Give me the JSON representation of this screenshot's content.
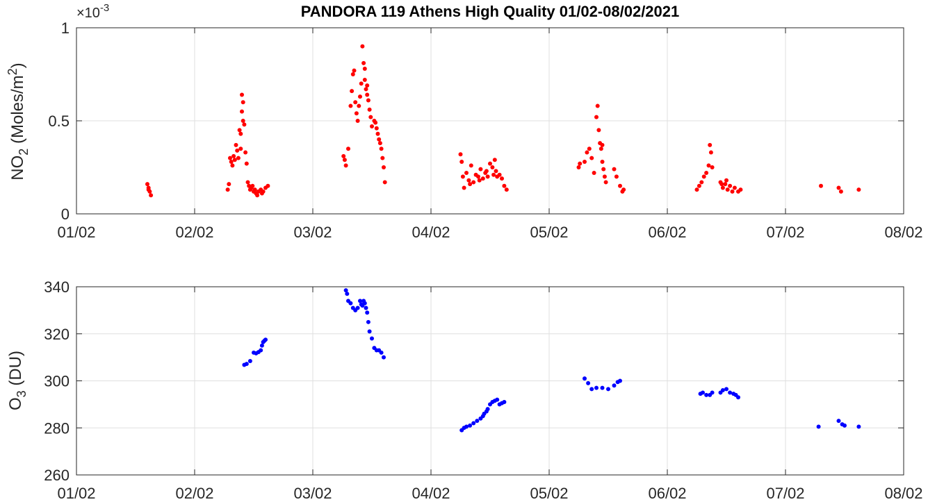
{
  "chart_data": [
    {
      "type": "scatter",
      "title": "PANDORA 119 Athens High Quality 01/02-08/02/2021",
      "ylabel_main": "NO",
      "ylabel_sub": "2",
      "ylabel_rest": " (Moles/m",
      "ylabel_sup": "2",
      "ylabel_end": ")",
      "exponent_prefix": "×10",
      "exponent": "-3",
      "xlim": [
        1,
        8
      ],
      "ylim": [
        0,
        1
      ],
      "x_ticks": [
        1,
        2,
        3,
        4,
        5,
        6,
        7,
        8
      ],
      "x_tick_labels": [
        "01/02",
        "02/02",
        "03/02",
        "04/02",
        "05/02",
        "06/02",
        "07/02",
        "08/02"
      ],
      "y_ticks": [
        0,
        0.5,
        1
      ],
      "y_tick_labels": [
        "0",
        "0.5",
        "1"
      ],
      "grid": true,
      "color": "#ff0000",
      "points": [
        [
          1.6,
          0.16
        ],
        [
          1.61,
          0.14
        ],
        [
          1.62,
          0.12
        ],
        [
          1.63,
          0.1
        ],
        [
          1.61,
          0.13
        ],
        [
          2.28,
          0.13
        ],
        [
          2.29,
          0.16
        ],
        [
          2.3,
          0.3
        ],
        [
          2.31,
          0.28
        ],
        [
          2.32,
          0.26
        ],
        [
          2.33,
          0.31
        ],
        [
          2.34,
          0.29
        ],
        [
          2.35,
          0.37
        ],
        [
          2.36,
          0.34
        ],
        [
          2.37,
          0.3
        ],
        [
          2.38,
          0.45
        ],
        [
          2.39,
          0.43
        ],
        [
          2.4,
          0.55
        ],
        [
          2.41,
          0.6
        ],
        [
          2.42,
          0.48
        ],
        [
          2.43,
          0.33
        ],
        [
          2.44,
          0.27
        ],
        [
          2.45,
          0.17
        ],
        [
          2.46,
          0.15
        ],
        [
          2.47,
          0.13
        ],
        [
          2.48,
          0.14
        ],
        [
          2.5,
          0.12
        ],
        [
          2.52,
          0.11
        ],
        [
          2.54,
          0.12
        ],
        [
          2.56,
          0.13
        ],
        [
          2.58,
          0.12
        ],
        [
          2.6,
          0.14
        ],
        [
          2.62,
          0.15
        ],
        [
          2.4,
          0.64
        ],
        [
          2.39,
          0.35
        ],
        [
          2.41,
          0.5
        ],
        [
          2.53,
          0.1
        ],
        [
          2.57,
          0.11
        ],
        [
          2.49,
          0.15
        ],
        [
          2.51,
          0.13
        ],
        [
          3.26,
          0.31
        ],
        [
          3.27,
          0.29
        ],
        [
          3.28,
          0.26
        ],
        [
          3.3,
          0.35
        ],
        [
          3.32,
          0.58
        ],
        [
          3.33,
          0.66
        ],
        [
          3.34,
          0.75
        ],
        [
          3.35,
          0.77
        ],
        [
          3.36,
          0.6
        ],
        [
          3.37,
          0.54
        ],
        [
          3.38,
          0.5
        ],
        [
          3.39,
          0.58
        ],
        [
          3.4,
          0.63
        ],
        [
          3.41,
          0.7
        ],
        [
          3.42,
          0.9
        ],
        [
          3.43,
          0.81
        ],
        [
          3.44,
          0.72
        ],
        [
          3.45,
          0.67
        ],
        [
          3.46,
          0.64
        ],
        [
          3.47,
          0.61
        ],
        [
          3.48,
          0.56
        ],
        [
          3.49,
          0.52
        ],
        [
          3.5,
          0.47
        ],
        [
          3.52,
          0.5
        ],
        [
          3.54,
          0.46
        ],
        [
          3.55,
          0.43
        ],
        [
          3.56,
          0.4
        ],
        [
          3.57,
          0.38
        ],
        [
          3.58,
          0.35
        ],
        [
          3.59,
          0.3
        ],
        [
          3.6,
          0.25
        ],
        [
          3.61,
          0.17
        ],
        [
          3.44,
          0.78
        ],
        [
          3.46,
          0.69
        ],
        [
          3.53,
          0.49
        ],
        [
          4.25,
          0.32
        ],
        [
          4.26,
          0.28
        ],
        [
          4.27,
          0.2
        ],
        [
          4.28,
          0.14
        ],
        [
          4.3,
          0.22
        ],
        [
          4.32,
          0.18
        ],
        [
          4.34,
          0.26
        ],
        [
          4.36,
          0.17
        ],
        [
          4.38,
          0.21
        ],
        [
          4.4,
          0.2
        ],
        [
          4.42,
          0.24
        ],
        [
          4.44,
          0.19
        ],
        [
          4.46,
          0.22
        ],
        [
          4.48,
          0.2
        ],
        [
          4.5,
          0.27
        ],
        [
          4.52,
          0.25
        ],
        [
          4.54,
          0.29
        ],
        [
          4.55,
          0.23
        ],
        [
          4.56,
          0.2
        ],
        [
          4.58,
          0.21
        ],
        [
          4.6,
          0.19
        ],
        [
          4.62,
          0.15
        ],
        [
          4.64,
          0.13
        ],
        [
          4.33,
          0.16
        ],
        [
          4.41,
          0.18
        ],
        [
          4.47,
          0.23
        ],
        [
          4.53,
          0.21
        ],
        [
          5.25,
          0.25
        ],
        [
          5.26,
          0.27
        ],
        [
          5.3,
          0.28
        ],
        [
          5.32,
          0.33
        ],
        [
          5.34,
          0.35
        ],
        [
          5.36,
          0.3
        ],
        [
          5.38,
          0.22
        ],
        [
          5.4,
          0.52
        ],
        [
          5.41,
          0.58
        ],
        [
          5.42,
          0.45
        ],
        [
          5.43,
          0.38
        ],
        [
          5.44,
          0.35
        ],
        [
          5.45,
          0.28
        ],
        [
          5.46,
          0.24
        ],
        [
          5.47,
          0.2
        ],
        [
          5.48,
          0.17
        ],
        [
          5.55,
          0.24
        ],
        [
          5.57,
          0.2
        ],
        [
          5.6,
          0.15
        ],
        [
          5.62,
          0.12
        ],
        [
          5.63,
          0.13
        ],
        [
          5.45,
          0.37
        ],
        [
          6.25,
          0.13
        ],
        [
          6.27,
          0.15
        ],
        [
          6.29,
          0.17
        ],
        [
          6.31,
          0.2
        ],
        [
          6.33,
          0.22
        ],
        [
          6.35,
          0.26
        ],
        [
          6.36,
          0.37
        ],
        [
          6.37,
          0.33
        ],
        [
          6.38,
          0.25
        ],
        [
          6.45,
          0.17
        ],
        [
          6.47,
          0.14
        ],
        [
          6.49,
          0.16
        ],
        [
          6.51,
          0.13
        ],
        [
          6.53,
          0.15
        ],
        [
          6.55,
          0.12
        ],
        [
          6.57,
          0.14
        ],
        [
          6.6,
          0.12
        ],
        [
          6.62,
          0.13
        ],
        [
          6.5,
          0.18
        ],
        [
          6.46,
          0.16
        ],
        [
          7.3,
          0.15
        ],
        [
          7.45,
          0.14
        ],
        [
          7.47,
          0.12
        ],
        [
          7.62,
          0.13
        ]
      ]
    },
    {
      "type": "scatter",
      "title": "",
      "ylabel_main": "O",
      "ylabel_sub": "3",
      "ylabel_rest": " (DU)",
      "xlim": [
        1,
        8
      ],
      "ylim": [
        260,
        340
      ],
      "x_ticks": [
        1,
        2,
        3,
        4,
        5,
        6,
        7,
        8
      ],
      "x_tick_labels": [
        "01/02",
        "02/02",
        "03/02",
        "04/02",
        "05/02",
        "06/02",
        "07/02",
        "08/02"
      ],
      "y_ticks": [
        260,
        280,
        300,
        320,
        340
      ],
      "y_tick_labels": [
        "260",
        "280",
        "300",
        "320",
        "340"
      ],
      "grid": true,
      "color": "#0000ff",
      "points": [
        [
          2.42,
          306.8
        ],
        [
          2.44,
          307.2
        ],
        [
          2.47,
          308.4
        ],
        [
          2.5,
          312
        ],
        [
          2.52,
          311.7
        ],
        [
          2.54,
          312.2
        ],
        [
          2.56,
          313
        ],
        [
          2.57,
          315
        ],
        [
          2.58,
          316.5
        ],
        [
          2.6,
          317.5
        ],
        [
          2.59,
          317
        ],
        [
          3.28,
          338.5
        ],
        [
          3.29,
          337
        ],
        [
          3.3,
          334
        ],
        [
          3.32,
          333
        ],
        [
          3.34,
          331
        ],
        [
          3.36,
          330
        ],
        [
          3.38,
          331
        ],
        [
          3.4,
          334
        ],
        [
          3.42,
          332
        ],
        [
          3.44,
          333
        ],
        [
          3.45,
          331
        ],
        [
          3.46,
          329
        ],
        [
          3.47,
          325
        ],
        [
          3.48,
          321
        ],
        [
          3.5,
          318
        ],
        [
          3.52,
          314
        ],
        [
          3.54,
          313
        ],
        [
          3.56,
          313
        ],
        [
          3.58,
          312
        ],
        [
          3.6,
          310
        ],
        [
          3.43,
          334
        ],
        [
          3.41,
          332.5
        ],
        [
          4.26,
          279
        ],
        [
          4.28,
          280
        ],
        [
          4.3,
          280.5
        ],
        [
          4.33,
          281
        ],
        [
          4.36,
          282
        ],
        [
          4.39,
          283
        ],
        [
          4.42,
          284
        ],
        [
          4.45,
          286
        ],
        [
          4.48,
          288
        ],
        [
          4.5,
          290
        ],
        [
          4.52,
          291
        ],
        [
          4.54,
          291.5
        ],
        [
          4.56,
          292
        ],
        [
          4.58,
          290
        ],
        [
          4.6,
          290.5
        ],
        [
          4.62,
          291
        ],
        [
          4.44,
          285
        ],
        [
          4.47,
          287
        ],
        [
          5.3,
          301
        ],
        [
          5.33,
          299
        ],
        [
          5.36,
          296.5
        ],
        [
          5.4,
          297
        ],
        [
          5.45,
          297
        ],
        [
          5.5,
          296.5
        ],
        [
          5.55,
          298
        ],
        [
          5.58,
          299.5
        ],
        [
          5.6,
          300
        ],
        [
          6.28,
          294.5
        ],
        [
          6.3,
          295
        ],
        [
          6.33,
          294
        ],
        [
          6.36,
          294
        ],
        [
          6.38,
          295
        ],
        [
          6.45,
          295
        ],
        [
          6.47,
          296
        ],
        [
          6.5,
          296.5
        ],
        [
          6.53,
          295
        ],
        [
          6.56,
          294.5
        ],
        [
          6.58,
          294
        ],
        [
          6.6,
          293
        ],
        [
          7.28,
          280.5
        ],
        [
          7.45,
          283
        ],
        [
          7.48,
          281.5
        ],
        [
          7.5,
          281
        ],
        [
          7.62,
          280.5
        ]
      ]
    }
  ]
}
